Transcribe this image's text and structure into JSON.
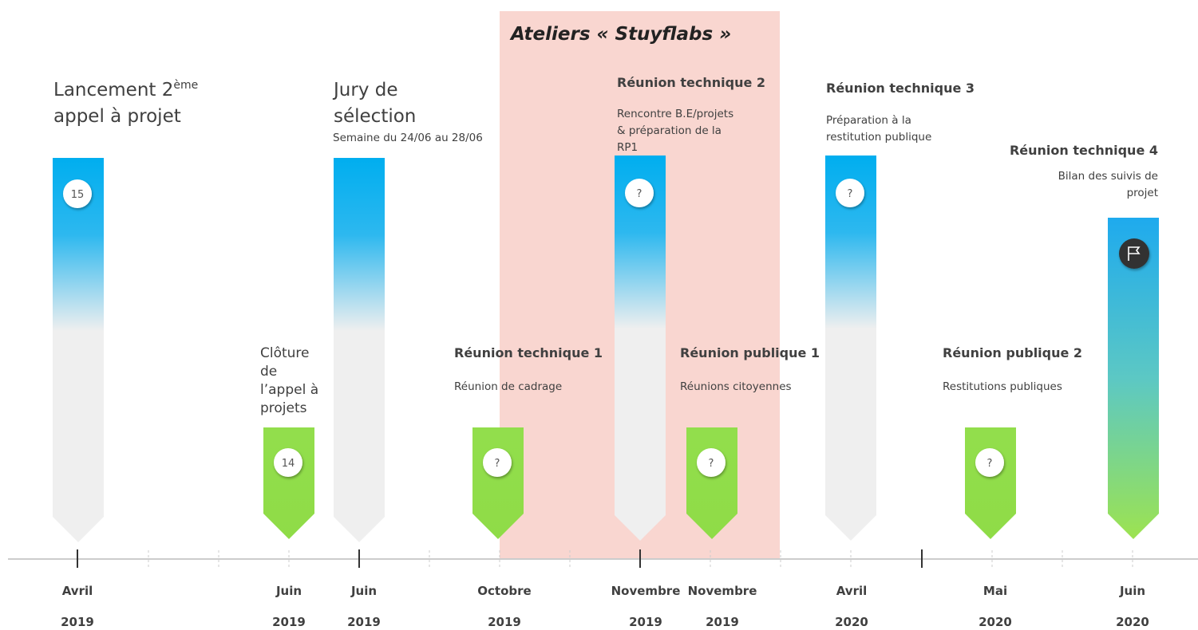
{
  "title": "Ateliers « Stuyflabs »",
  "milestones": [
    {
      "title": [
        "Lancement 2",
        "appel à projet"
      ],
      "title_sup": "ème",
      "badge": "15"
    },
    {
      "title": [
        "Clôture",
        "de",
        "l’appel à",
        "projets"
      ],
      "badge": "14"
    },
    {
      "title": [
        "Jury de",
        "sélection"
      ],
      "subtitle": [
        "Semaine du 24/06 au 28/06"
      ]
    },
    {
      "title": [
        "Réunion technique 1"
      ],
      "subtitle": [
        "Réunion de cadrage"
      ],
      "badge": "?"
    },
    {
      "title": [
        "Réunion technique 2"
      ],
      "subtitle": [
        "Rencontre B.E/projets",
        "& préparation de la",
        "RP1"
      ],
      "badge": "?"
    },
    {
      "title": [
        "Réunion publique 1"
      ],
      "subtitle": [
        "Réunions citoyennes"
      ],
      "badge": "?"
    },
    {
      "title": [
        "Réunion technique 3"
      ],
      "subtitle": [
        "Préparation à la",
        "restitution publique"
      ],
      "badge": "?"
    },
    {
      "title": [
        "Réunion publique 2"
      ],
      "subtitle": [
        "Restitutions publiques"
      ],
      "badge": "?"
    },
    {
      "title": [
        "Réunion technique 4"
      ],
      "subtitle": [
        "Bilan des suivis de",
        "projet"
      ]
    }
  ],
  "dates": [
    {
      "month": "Avril",
      "year": "2019"
    },
    {
      "month": "Juin",
      "year": "2019"
    },
    {
      "month": "Juin",
      "year": "2019"
    },
    {
      "month": "Octobre",
      "year": "2019"
    },
    {
      "month": "Novembre",
      "year": "2019"
    },
    {
      "month": "Novembre",
      "year": "2019"
    },
    {
      "month": "Avril",
      "year": "2020"
    },
    {
      "month": "Mai",
      "year": "2020"
    },
    {
      "month": "Juin",
      "year": "2020"
    }
  ]
}
